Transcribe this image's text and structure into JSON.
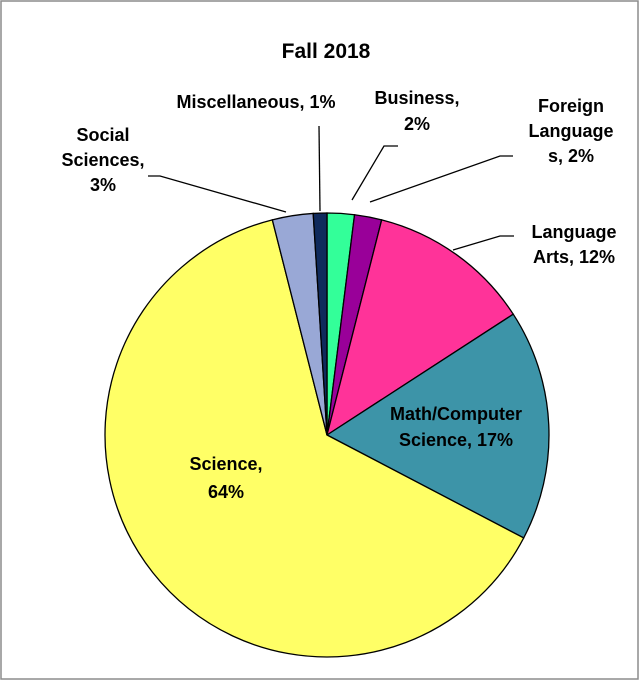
{
  "chart_data": {
    "type": "pie",
    "title": "Fall 2018",
    "slices": [
      {
        "name": "Business",
        "value": 2,
        "label_lines": [
          "Business,",
          "2%"
        ],
        "color": "#33FF99"
      },
      {
        "name": "Foreign Languages",
        "value": 2,
        "label_lines": [
          "Foreign",
          "Language",
          "s, 2%"
        ],
        "color": "#990099"
      },
      {
        "name": "Language Arts",
        "value": 12,
        "label_lines": [
          "Language",
          "Arts, 12%"
        ],
        "color": "#FF3399"
      },
      {
        "name": "Math/Computer Science",
        "value": 17,
        "label_lines": [
          "Math/Computer",
          "Science, 17%"
        ],
        "color": "#3D94A8"
      },
      {
        "name": "Science",
        "value": 64,
        "label_lines": [
          "Science,",
          "64%"
        ],
        "color": "#FFFF66"
      },
      {
        "name": "Social Sciences",
        "value": 3,
        "label_lines": [
          "Social",
          "Sciences,",
          "3%"
        ],
        "color": "#99A8D6"
      },
      {
        "name": "Miscellaneous",
        "value": 1,
        "label_lines": [
          "Miscellaneous, 1%"
        ],
        "color": "#0F2A5C"
      }
    ],
    "start_angle_deg": 90,
    "direction": "clockwise",
    "legend": "none",
    "data_labels": "category name and percentage"
  }
}
